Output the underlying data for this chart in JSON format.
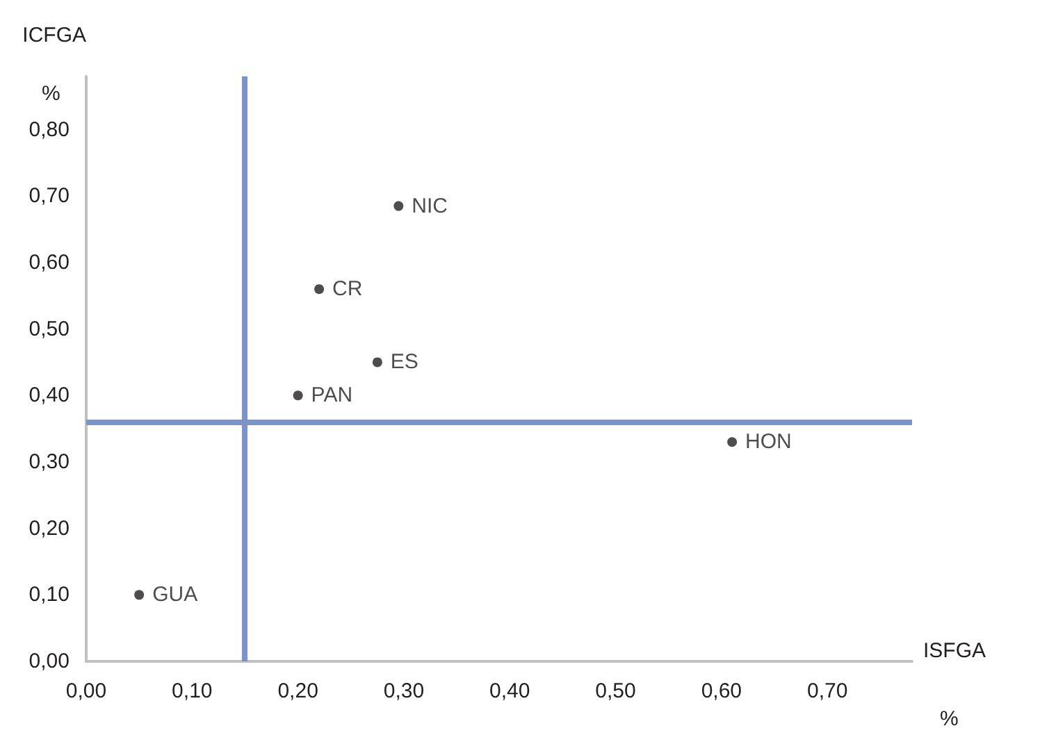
{
  "chart_data": {
    "type": "scatter",
    "xlabel": "ISFGA",
    "ylabel": "ICFGA",
    "annotations": [
      "%",
      "%"
    ],
    "xlim": [
      0,
      0.78
    ],
    "ylim": [
      0,
      0.88
    ],
    "xticks": [
      {
        "value": 0,
        "label": "0,00"
      },
      {
        "value": 0.1,
        "label": "0,10"
      },
      {
        "value": 0.2,
        "label": "0,20"
      },
      {
        "value": 0.3,
        "label": "0,30"
      },
      {
        "value": 0.4,
        "label": "0,40"
      },
      {
        "value": 0.5,
        "label": "0,50"
      },
      {
        "value": 0.6,
        "label": "0,60"
      },
      {
        "value": 0.7,
        "label": "0,70"
      }
    ],
    "yticks": [
      {
        "value": 0,
        "label": "0,00"
      },
      {
        "value": 0.1,
        "label": "0,10"
      },
      {
        "value": 0.2,
        "label": "0,20"
      },
      {
        "value": 0.3,
        "label": "0,30"
      },
      {
        "value": 0.4,
        "label": "0,40"
      },
      {
        "value": 0.5,
        "label": "0,50"
      },
      {
        "value": 0.6,
        "label": "0,60"
      },
      {
        "value": 0.7,
        "label": "0,70"
      },
      {
        "value": 0.8,
        "label": "0,80"
      }
    ],
    "series": [
      {
        "name": "NIC",
        "color": "#231f20",
        "x": [
          0.295
        ],
        "values": [
          0.685
        ]
      },
      {
        "name": "CR",
        "color": "#231f20",
        "x": [
          0.22
        ],
        "values": [
          0.56
        ]
      },
      {
        "name": "ES",
        "color": "#231f20",
        "x": [
          0.275
        ],
        "values": [
          0.45
        ]
      },
      {
        "name": "PAN",
        "color": "#231f20",
        "x": [
          0.2
        ],
        "values": [
          0.4
        ]
      },
      {
        "name": "HON",
        "color": "#231f20",
        "x": [
          0.61
        ],
        "values": [
          0.33
        ]
      },
      {
        "name": "GUA",
        "color": "#231f20",
        "x": [
          0.05
        ],
        "values": [
          0.1
        ]
      }
    ],
    "ref_lines": [
      {
        "axis": "x",
        "value": 0.15,
        "color": "#7b93c6"
      },
      {
        "axis": "y",
        "value": 0.36,
        "color": "#7b93c6"
      }
    ],
    "marker": "circle",
    "grid": false,
    "legend": false
  }
}
